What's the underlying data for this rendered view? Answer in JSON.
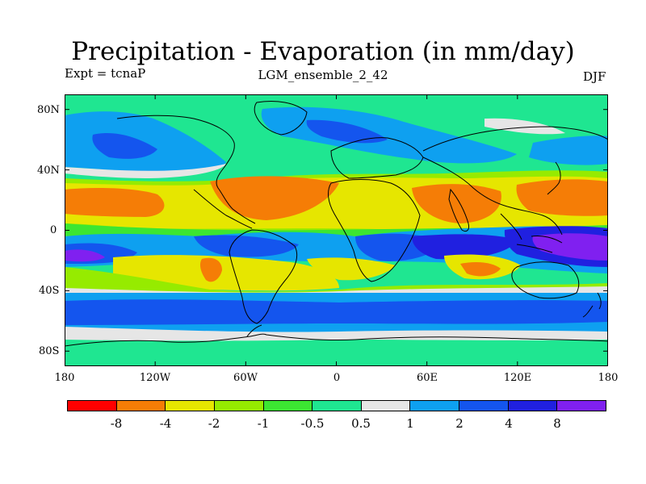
{
  "title": "Precipitation - Evaporation (in mm/day)",
  "expt_label": "Expt = tcnaP",
  "ensemble_label": "LGM_ensemble_2_42",
  "season_label": "DJF",
  "map": {
    "lat_labels": [
      "80N",
      "40N",
      "0",
      "40S",
      "80S"
    ],
    "lat_values": [
      80,
      40,
      0,
      -40,
      -80
    ],
    "lon_labels": [
      "180",
      "120W",
      "60W",
      "0",
      "60E",
      "120E",
      "180"
    ],
    "lon_values": [
      -180,
      -120,
      -60,
      0,
      60,
      120,
      180
    ],
    "lat_range": [
      -90,
      90
    ],
    "lon_range": [
      -180,
      180
    ]
  },
  "colorbar": {
    "colors": [
      "#ff0000",
      "#f57d06",
      "#e6e600",
      "#96eb00",
      "#3ce632",
      "#1fe691",
      "#e6e6e6",
      "#0ea0f0",
      "#1455ee",
      "#2020e0",
      "#8020f0"
    ],
    "labels": [
      "-8",
      "-4",
      "-2",
      "-1",
      "-0.5",
      "0.5",
      "1",
      "2",
      "4",
      "8"
    ]
  },
  "palette": {
    "background": "#1fe691",
    "orange": "#f57d06",
    "yellow": "#e6e600",
    "lime": "#96eb00",
    "green": "#3ce632",
    "grey": "#e6e6e6",
    "light_blue": "#0ea0f0",
    "blue": "#1455ee",
    "dark_blue": "#2020e0",
    "purple": "#8020f0",
    "coast": "#000000"
  }
}
